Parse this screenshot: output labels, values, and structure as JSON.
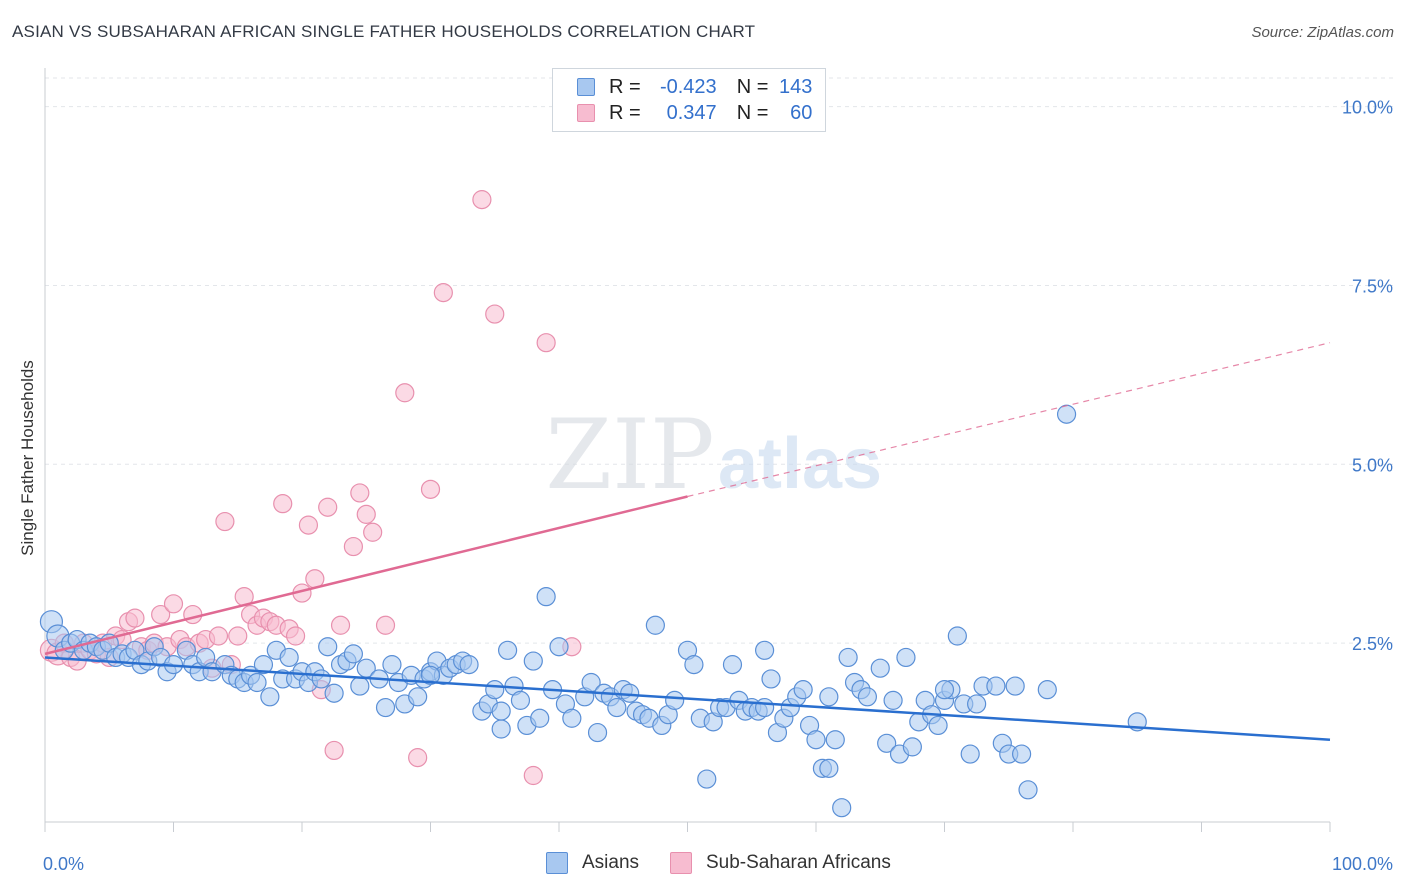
{
  "header": {
    "title": "ASIAN VS SUBSAHARAN AFRICAN SINGLE FATHER HOUSEHOLDS CORRELATION CHART",
    "source": "Source: ZipAtlas.com"
  },
  "watermark": {
    "zip": "ZIP",
    "atlas": "atlas"
  },
  "legend": {
    "r_label": "R =",
    "n_label": "N =",
    "rows": [
      {
        "r": "-0.423",
        "n": "143"
      },
      {
        "r": "0.347",
        "n": "60"
      }
    ]
  },
  "colors": {
    "asian_fill": "#a8c8f0",
    "asian_stroke": "#5a8fd6",
    "asian_line": "#2a6fcf",
    "african_fill": "#f7bcd0",
    "african_stroke": "#e890ae",
    "african_line": "#e06a93",
    "tick_label": "#3f78c8"
  },
  "chart_data": {
    "type": "scatter",
    "title": "ASIAN VS SUBSAHARAN AFRICAN SINGLE FATHER HOUSEHOLDS CORRELATION CHART",
    "ylabel": "Single Father Households",
    "xlabel": "",
    "xlim": [
      0,
      100
    ],
    "ylim": [
      0,
      10.4
    ],
    "x_tick_labels": [
      "0.0%",
      "100.0%"
    ],
    "y_ticks": [
      2.5,
      5.0,
      7.5,
      10.0
    ],
    "y_tick_labels": [
      "2.5%",
      "5.0%",
      "7.5%",
      "10.0%"
    ],
    "grid": "horizontal dashed",
    "legend_position": "top-center",
    "series": [
      {
        "name": "Asians",
        "r": -0.423,
        "n": 143,
        "trend": {
          "x": [
            0,
            100
          ],
          "y": [
            2.3,
            1.15
          ]
        },
        "points": [
          [
            0.5,
            2.8
          ],
          [
            1,
            2.6
          ],
          [
            1.5,
            2.4
          ],
          [
            2,
            2.5
          ],
          [
            2.5,
            2.55
          ],
          [
            3,
            2.4
          ],
          [
            3.5,
            2.5
          ],
          [
            4,
            2.45
          ],
          [
            4.5,
            2.4
          ],
          [
            5,
            2.5
          ],
          [
            5.5,
            2.3
          ],
          [
            6,
            2.35
          ],
          [
            6.5,
            2.3
          ],
          [
            7,
            2.4
          ],
          [
            7.5,
            2.2
          ],
          [
            8,
            2.25
          ],
          [
            8.5,
            2.45
          ],
          [
            9,
            2.3
          ],
          [
            9.5,
            2.1
          ],
          [
            10,
            2.2
          ],
          [
            11,
            2.4
          ],
          [
            11.5,
            2.2
          ],
          [
            12,
            2.1
          ],
          [
            12.5,
            2.3
          ],
          [
            13,
            2.1
          ],
          [
            14,
            2.2
          ],
          [
            14.5,
            2.05
          ],
          [
            15,
            2.0
          ],
          [
            15.5,
            1.95
          ],
          [
            16,
            2.05
          ],
          [
            16.5,
            1.95
          ],
          [
            17,
            2.2
          ],
          [
            17.5,
            1.75
          ],
          [
            18,
            2.4
          ],
          [
            18.5,
            2.0
          ],
          [
            19,
            2.3
          ],
          [
            19.5,
            2.0
          ],
          [
            20,
            2.1
          ],
          [
            20.5,
            1.95
          ],
          [
            21,
            2.1
          ],
          [
            21.5,
            2.0
          ],
          [
            22,
            2.45
          ],
          [
            22.5,
            1.8
          ],
          [
            23,
            2.2
          ],
          [
            23.5,
            2.25
          ],
          [
            24,
            2.35
          ],
          [
            24.5,
            1.9
          ],
          [
            25,
            2.15
          ],
          [
            26,
            2.0
          ],
          [
            26.5,
            1.6
          ],
          [
            27,
            2.2
          ],
          [
            27.5,
            1.95
          ],
          [
            28,
            1.65
          ],
          [
            28.5,
            2.05
          ],
          [
            29,
            1.75
          ],
          [
            29.5,
            2.0
          ],
          [
            30,
            2.1
          ],
          [
            30.5,
            2.25
          ],
          [
            31,
            2.05
          ],
          [
            31.5,
            2.15
          ],
          [
            32,
            2.2
          ],
          [
            32.5,
            2.25
          ],
          [
            33,
            2.2
          ],
          [
            34,
            1.55
          ],
          [
            34.5,
            1.65
          ],
          [
            35,
            1.85
          ],
          [
            35.5,
            1.55
          ],
          [
            36,
            2.4
          ],
          [
            36.5,
            1.9
          ],
          [
            37,
            1.7
          ],
          [
            37.5,
            1.35
          ],
          [
            38,
            2.25
          ],
          [
            38.5,
            1.45
          ],
          [
            39,
            3.15
          ],
          [
            39.5,
            1.85
          ],
          [
            40,
            2.45
          ],
          [
            40.5,
            1.65
          ],
          [
            41,
            1.45
          ],
          [
            42,
            1.75
          ],
          [
            42.5,
            1.95
          ],
          [
            43,
            1.25
          ],
          [
            43.5,
            1.8
          ],
          [
            44,
            1.75
          ],
          [
            44.5,
            1.6
          ],
          [
            45,
            1.85
          ],
          [
            45.5,
            1.8
          ],
          [
            46,
            1.55
          ],
          [
            46.5,
            1.5
          ],
          [
            47,
            1.45
          ],
          [
            47.5,
            2.75
          ],
          [
            48,
            1.35
          ],
          [
            48.5,
            1.5
          ],
          [
            49,
            1.7
          ],
          [
            50,
            2.4
          ],
          [
            50.5,
            2.2
          ],
          [
            51,
            1.45
          ],
          [
            51.5,
            0.6
          ],
          [
            52,
            1.4
          ],
          [
            52.5,
            1.6
          ],
          [
            53,
            1.6
          ],
          [
            53.5,
            2.2
          ],
          [
            54,
            1.7
          ],
          [
            54.5,
            1.55
          ],
          [
            55,
            1.6
          ],
          [
            55.5,
            1.55
          ],
          [
            56,
            2.4
          ],
          [
            56.5,
            2.0
          ],
          [
            57,
            1.25
          ],
          [
            57.5,
            1.45
          ],
          [
            58,
            1.6
          ],
          [
            58.5,
            1.75
          ],
          [
            59,
            1.85
          ],
          [
            59.5,
            1.35
          ],
          [
            60,
            1.15
          ],
          [
            60.5,
            0.75
          ],
          [
            61,
            1.75
          ],
          [
            61.5,
            1.15
          ],
          [
            62,
            0.2
          ],
          [
            62.5,
            2.3
          ],
          [
            63,
            1.95
          ],
          [
            63.5,
            1.85
          ],
          [
            64,
            1.75
          ],
          [
            65,
            2.15
          ],
          [
            65.5,
            1.1
          ],
          [
            66,
            1.7
          ],
          [
            66.5,
            0.95
          ],
          [
            67,
            2.3
          ],
          [
            67.5,
            1.05
          ],
          [
            68,
            1.4
          ],
          [
            68.5,
            1.7
          ],
          [
            69,
            1.5
          ],
          [
            69.5,
            1.35
          ],
          [
            70,
            1.7
          ],
          [
            70.5,
            1.85
          ],
          [
            71,
            2.6
          ],
          [
            71.5,
            1.65
          ],
          [
            72,
            0.95
          ],
          [
            72.5,
            1.65
          ],
          [
            73,
            1.9
          ],
          [
            74,
            1.9
          ],
          [
            74.5,
            1.1
          ],
          [
            75,
            0.95
          ],
          [
            75.5,
            1.9
          ],
          [
            76,
            0.95
          ],
          [
            78,
            1.85
          ],
          [
            79.5,
            5.7
          ],
          [
            85,
            1.4
          ],
          [
            76.5,
            0.45
          ],
          [
            61,
            0.75
          ],
          [
            35.5,
            1.3
          ],
          [
            30,
            2.05
          ],
          [
            56,
            1.6
          ],
          [
            70,
            1.85
          ]
        ]
      },
      {
        "name": "Sub-Saharan Africans",
        "r": 0.347,
        "n": 60,
        "trend": {
          "x": [
            0,
            50
          ],
          "y": [
            2.35,
            4.55
          ],
          "dashed_to": {
            "x": 100,
            "y": 6.7
          }
        },
        "points": [
          [
            0.5,
            2.4
          ],
          [
            1,
            2.35
          ],
          [
            1.5,
            2.5
          ],
          [
            2,
            2.3
          ],
          [
            2.5,
            2.25
          ],
          [
            3,
            2.5
          ],
          [
            3.5,
            2.4
          ],
          [
            4,
            2.35
          ],
          [
            4.5,
            2.5
          ],
          [
            5,
            2.3
          ],
          [
            5.5,
            2.6
          ],
          [
            6,
            2.55
          ],
          [
            6.5,
            2.8
          ],
          [
            7,
            2.85
          ],
          [
            7.5,
            2.45
          ],
          [
            8,
            2.4
          ],
          [
            8.5,
            2.5
          ],
          [
            9,
            2.9
          ],
          [
            9.5,
            2.45
          ],
          [
            10,
            3.05
          ],
          [
            10.5,
            2.55
          ],
          [
            11,
            2.45
          ],
          [
            11.5,
            2.9
          ],
          [
            12,
            2.5
          ],
          [
            12.5,
            2.55
          ],
          [
            13,
            2.15
          ],
          [
            13.5,
            2.6
          ],
          [
            14,
            4.2
          ],
          [
            14.5,
            2.2
          ],
          [
            15,
            2.6
          ],
          [
            15.5,
            3.15
          ],
          [
            16,
            2.9
          ],
          [
            16.5,
            2.75
          ],
          [
            17,
            2.85
          ],
          [
            17.5,
            2.8
          ],
          [
            18,
            2.75
          ],
          [
            18.5,
            4.45
          ],
          [
            19,
            2.7
          ],
          [
            19.5,
            2.6
          ],
          [
            20,
            3.2
          ],
          [
            20.5,
            4.15
          ],
          [
            21,
            3.4
          ],
          [
            21.5,
            1.85
          ],
          [
            22,
            4.4
          ],
          [
            22.5,
            1.0
          ],
          [
            23,
            2.75
          ],
          [
            24,
            3.85
          ],
          [
            24.5,
            4.6
          ],
          [
            25,
            4.3
          ],
          [
            25.5,
            4.05
          ],
          [
            26.5,
            2.75
          ],
          [
            28,
            6.0
          ],
          [
            29,
            0.9
          ],
          [
            30,
            4.65
          ],
          [
            31,
            7.4
          ],
          [
            34,
            8.7
          ],
          [
            35,
            7.1
          ],
          [
            38,
            0.65
          ],
          [
            39,
            6.7
          ],
          [
            41,
            2.45
          ]
        ]
      }
    ]
  },
  "bottom_legend": [
    {
      "label": "Asians"
    },
    {
      "label": "Sub-Saharan Africans"
    }
  ]
}
